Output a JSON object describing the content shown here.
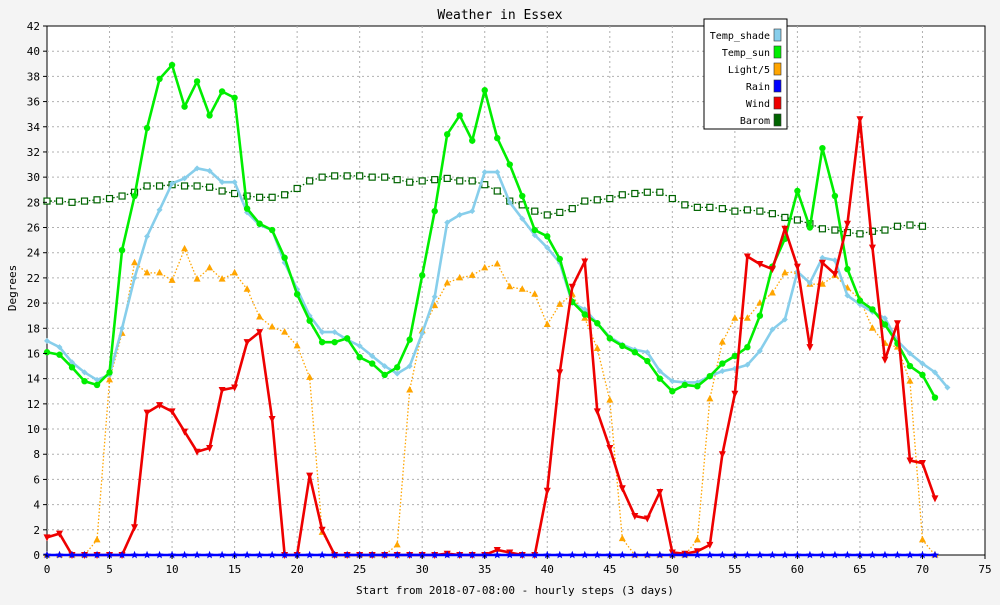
{
  "chart_data": {
    "type": "line",
    "title": "Weather in Essex",
    "xlabel": "Start from 2018-07-08:00 - hourly steps (3 days)",
    "ylabel": "Degrees",
    "xlim": [
      0,
      75
    ],
    "ylim": [
      0,
      42
    ],
    "xticks": [
      0,
      5,
      10,
      15,
      20,
      25,
      30,
      35,
      40,
      45,
      50,
      55,
      60,
      65,
      70,
      75
    ],
    "yticks": [
      0,
      2,
      4,
      6,
      8,
      10,
      12,
      14,
      16,
      18,
      20,
      22,
      24,
      26,
      28,
      30,
      32,
      34,
      36,
      38,
      40,
      42
    ],
    "grid": true,
    "legend_position": "top-right",
    "series": [
      {
        "name": "Temp_shade",
        "color": "#87ceeb",
        "style": "solid",
        "marker": "diamond",
        "values": [
          17.0,
          16.5,
          15.3,
          14.5,
          13.9,
          14.3,
          18.0,
          22.0,
          25.3,
          27.4,
          29.5,
          29.9,
          30.7,
          30.5,
          29.6,
          29.6,
          27.2,
          26.2,
          25.8,
          23.2,
          21.1,
          19.0,
          17.7,
          17.7,
          17.1,
          16.6,
          15.8,
          15.0,
          14.4,
          15.0,
          17.6,
          20.5,
          26.4,
          27.0,
          27.3,
          30.4,
          30.4,
          28.0,
          26.7,
          25.4,
          24.4,
          23.2,
          20.0,
          19.5,
          18.4,
          17.3,
          16.7,
          16.3,
          16.1,
          14.6,
          13.8,
          13.7,
          13.7,
          14.2,
          14.6,
          14.8,
          15.1,
          16.2,
          17.9,
          18.7,
          22.5,
          21.6,
          23.6,
          23.4,
          20.6,
          19.9,
          19.3,
          18.8,
          17.0,
          16.0,
          15.2,
          14.5,
          13.3
        ]
      },
      {
        "name": "Temp_sun",
        "color": "#00ee00",
        "style": "solid",
        "marker": "circle",
        "values": [
          16.1,
          15.9,
          14.9,
          13.8,
          13.5,
          14.5,
          24.2,
          28.5,
          33.9,
          37.8,
          38.9,
          35.6,
          37.6,
          34.9,
          36.8,
          36.3,
          27.5,
          26.3,
          25.8,
          23.6,
          20.7,
          18.6,
          16.9,
          16.9,
          17.2,
          15.7,
          15.2,
          14.3,
          14.9,
          17.1,
          22.2,
          27.3,
          33.4,
          34.9,
          32.9,
          36.9,
          33.1,
          31.0,
          28.5,
          25.8,
          25.3,
          23.5,
          20.1,
          19.1,
          18.4,
          17.2,
          16.6,
          16.1,
          15.4,
          14.0,
          13.0,
          13.5,
          13.4,
          14.2,
          15.2,
          15.8,
          16.5,
          19.0,
          22.9,
          25.1,
          28.9,
          26.0,
          32.3,
          28.5,
          22.7,
          20.2,
          19.5,
          18.3,
          16.8,
          15.0,
          14.3,
          12.5
        ]
      },
      {
        "name": "Light/5",
        "color": "#ffa500",
        "style": "dotted",
        "marker": "triangle-up",
        "values": [
          0,
          0,
          0,
          0,
          1.2,
          13.9,
          17.6,
          23.2,
          22.4,
          22.4,
          21.8,
          24.3,
          21.9,
          22.8,
          21.9,
          22.4,
          21.1,
          18.9,
          18.1,
          17.7,
          16.6,
          14.1,
          1.8,
          0,
          0,
          0,
          0,
          0,
          0.8,
          13.1,
          17.8,
          19.8,
          21.6,
          22.0,
          22.2,
          22.8,
          23.1,
          21.3,
          21.1,
          20.7,
          18.3,
          19.9,
          20.7,
          18.8,
          16.4,
          12.3,
          1.3,
          0,
          0,
          0,
          0,
          0,
          1.2,
          12.4,
          16.9,
          18.8,
          18.8,
          20.0,
          20.8,
          22.4,
          22.5,
          21.5,
          21.5,
          22.2,
          21.2,
          20.3,
          18.0,
          16.8,
          16.5,
          13.8,
          1.2,
          0
        ]
      },
      {
        "name": "Rain",
        "color": "#0000ff",
        "style": "solid",
        "marker": "star",
        "values": [
          0,
          0,
          0,
          0,
          0,
          0,
          0,
          0,
          0,
          0,
          0,
          0,
          0,
          0,
          0,
          0,
          0,
          0,
          0,
          0,
          0,
          0,
          0,
          0,
          0,
          0,
          0,
          0,
          0,
          0,
          0,
          0,
          0,
          0,
          0,
          0,
          0,
          0,
          0,
          0,
          0,
          0,
          0,
          0,
          0,
          0,
          0,
          0,
          0,
          0,
          0,
          0,
          0,
          0,
          0,
          0,
          0,
          0,
          0,
          0,
          0,
          0,
          0,
          0,
          0,
          0,
          0,
          0,
          0,
          0,
          0,
          0
        ]
      },
      {
        "name": "Wind",
        "color": "#ee0000",
        "style": "solid",
        "marker": "triangle-down",
        "values": [
          1.4,
          1.7,
          0,
          0,
          0,
          0,
          0,
          2.2,
          11.3,
          11.9,
          11.4,
          9.8,
          8.2,
          8.5,
          13.1,
          13.3,
          16.9,
          17.7,
          10.8,
          0,
          0,
          6.3,
          2.0,
          0,
          0,
          0,
          0,
          0,
          0,
          0,
          0,
          0,
          0.1,
          0,
          0,
          0,
          0.4,
          0.2,
          0,
          0,
          5.1,
          14.5,
          21.3,
          23.3,
          11.4,
          8.5,
          5.3,
          3.1,
          2.9,
          5.0,
          0.2,
          0.1,
          0.3,
          0.8,
          8.0,
          12.8,
          23.7,
          23.1,
          22.7,
          25.9,
          22.9,
          16.5,
          23.2,
          22.3,
          26.3,
          34.6,
          24.4,
          15.5,
          18.4,
          7.5,
          7.3,
          4.5
        ]
      },
      {
        "name": "Barom",
        "color": "#006400",
        "style": "dotted",
        "marker": "square-open",
        "values": [
          28.1,
          28.1,
          28.0,
          28.1,
          28.2,
          28.3,
          28.5,
          28.8,
          29.3,
          29.3,
          29.4,
          29.3,
          29.3,
          29.2,
          28.9,
          28.7,
          28.5,
          28.4,
          28.4,
          28.6,
          29.1,
          29.7,
          30.0,
          30.1,
          30.1,
          30.1,
          30.0,
          30.0,
          29.8,
          29.6,
          29.7,
          29.8,
          29.9,
          29.7,
          29.7,
          29.4,
          28.9,
          28.1,
          27.8,
          27.3,
          27.0,
          27.2,
          27.5,
          28.1,
          28.2,
          28.3,
          28.6,
          28.7,
          28.8,
          28.8,
          28.3,
          27.8,
          27.6,
          27.6,
          27.5,
          27.3,
          27.4,
          27.3,
          27.1,
          26.8,
          26.6,
          26.3,
          25.9,
          25.8,
          25.6,
          25.5,
          25.7,
          25.8,
          26.1,
          26.2,
          26.1
        ]
      }
    ]
  }
}
